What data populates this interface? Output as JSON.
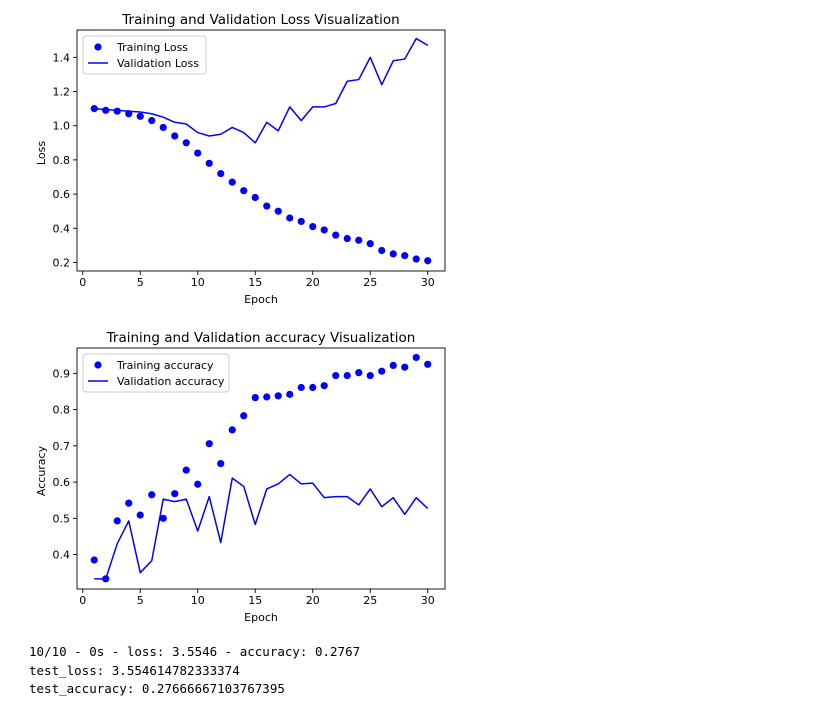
{
  "chart_data": [
    {
      "type": "line",
      "title": "Training and Validation Loss Visualization",
      "xlabel": "Epoch",
      "ylabel": "Loss",
      "xlim": [
        -0.5,
        31.5
      ],
      "ylim": [
        0.15,
        1.56
      ],
      "xticks": [
        0,
        5,
        10,
        15,
        20,
        25,
        30
      ],
      "yticks": [
        0.2,
        0.4,
        0.6,
        0.8,
        1.0,
        1.2,
        1.4
      ],
      "ytick_labels": [
        "0.2",
        "0.4",
        "0.6",
        "0.8",
        "1.0",
        "1.2",
        "1.4"
      ],
      "legend_position": "upper-left",
      "x": [
        1,
        2,
        3,
        4,
        5,
        6,
        7,
        8,
        9,
        10,
        11,
        12,
        13,
        14,
        15,
        16,
        17,
        18,
        19,
        20,
        21,
        22,
        23,
        24,
        25,
        26,
        27,
        28,
        29,
        30
      ],
      "series": [
        {
          "name": "Training Loss",
          "style": "dots",
          "color": "#0000ff",
          "values": [
            1.1,
            1.09,
            1.085,
            1.07,
            1.055,
            1.03,
            0.99,
            0.94,
            0.9,
            0.84,
            0.78,
            0.72,
            0.67,
            0.62,
            0.58,
            0.53,
            0.5,
            0.46,
            0.44,
            0.41,
            0.39,
            0.36,
            0.34,
            0.33,
            0.31,
            0.27,
            0.25,
            0.24,
            0.22,
            0.21
          ]
        },
        {
          "name": "Validation Loss",
          "style": "line",
          "color": "#0000ff",
          "values": [
            1.1,
            1.095,
            1.09,
            1.085,
            1.08,
            1.07,
            1.05,
            1.02,
            1.01,
            0.96,
            0.94,
            0.95,
            0.99,
            0.96,
            0.9,
            1.02,
            0.97,
            1.11,
            1.03,
            1.11,
            1.11,
            1.13,
            1.26,
            1.27,
            1.4,
            1.24,
            1.38,
            1.39,
            1.51,
            1.47
          ]
        }
      ]
    },
    {
      "type": "line",
      "title": "Training and Validation accuracy Visualization",
      "xlabel": "Epoch",
      "ylabel": "Accuracy",
      "xlim": [
        -0.5,
        31.5
      ],
      "ylim": [
        0.305,
        0.97
      ],
      "xticks": [
        0,
        5,
        10,
        15,
        20,
        25,
        30
      ],
      "yticks": [
        0.4,
        0.5,
        0.6,
        0.7,
        0.8,
        0.9
      ],
      "ytick_labels": [
        "0.4",
        "0.5",
        "0.6",
        "0.7",
        "0.8",
        "0.9"
      ],
      "legend_position": "upper-left",
      "x": [
        1,
        2,
        3,
        4,
        5,
        6,
        7,
        8,
        9,
        10,
        11,
        12,
        13,
        14,
        15,
        16,
        17,
        18,
        19,
        20,
        21,
        22,
        23,
        24,
        25,
        26,
        27,
        28,
        29,
        30
      ],
      "series": [
        {
          "name": "Training accuracy",
          "style": "dots",
          "color": "#0000ff",
          "values": [
            0.385,
            0.333,
            0.493,
            0.542,
            0.509,
            0.565,
            0.5,
            0.568,
            0.633,
            0.594,
            0.706,
            0.651,
            0.744,
            0.783,
            0.833,
            0.835,
            0.838,
            0.842,
            0.861,
            0.861,
            0.866,
            0.894,
            0.894,
            0.902,
            0.894,
            0.906,
            0.922,
            0.917,
            0.944,
            0.925
          ]
        },
        {
          "name": "Validation accuracy",
          "style": "line",
          "color": "#0000ff",
          "values": [
            0.333,
            0.333,
            0.43,
            0.493,
            0.35,
            0.383,
            0.553,
            0.546,
            0.553,
            0.465,
            0.56,
            0.433,
            0.611,
            0.588,
            0.483,
            0.581,
            0.595,
            0.621,
            0.595,
            0.597,
            0.557,
            0.56,
            0.56,
            0.537,
            0.581,
            0.532,
            0.557,
            0.511,
            0.557,
            0.527
          ]
        }
      ]
    }
  ],
  "console_output": [
    "10/10 - 0s - loss: 3.5546 - accuracy: 0.2767",
    "test_loss: 3.554614782333374",
    "test_accuracy: 0.27666667103767395"
  ]
}
